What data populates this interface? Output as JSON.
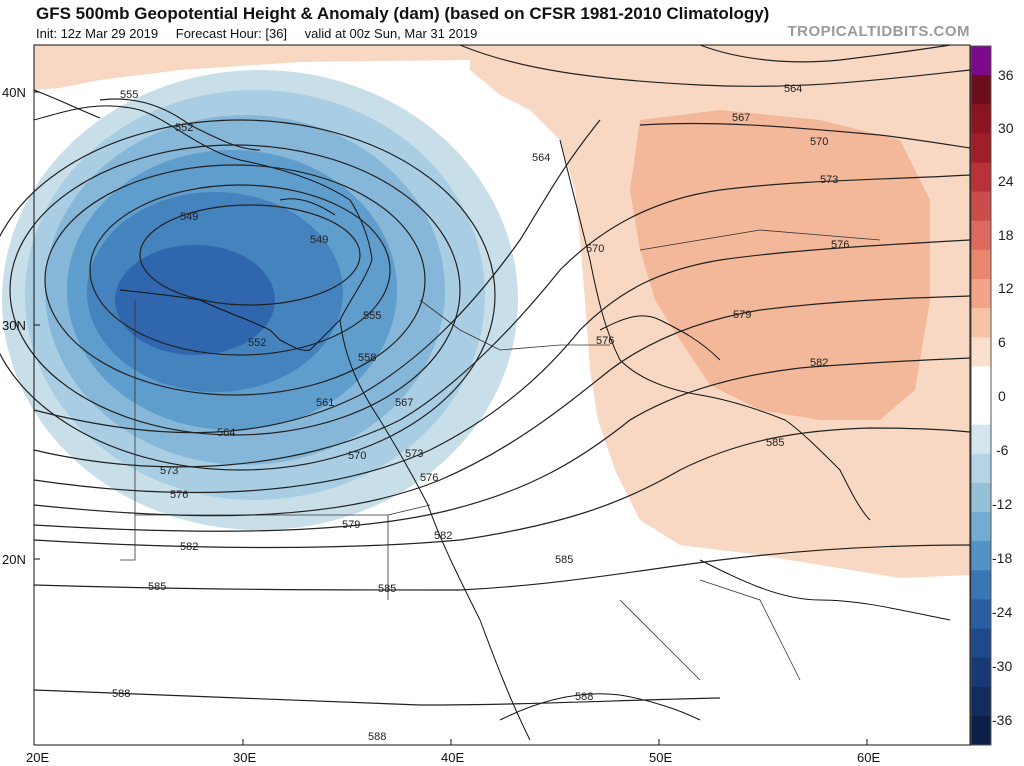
{
  "header": {
    "title": "GFS 500mb Geopotential Height & Anomaly (dam) (based on CFSR 1981-2010 Climatology)",
    "init": "Init: 12z Mar 29 2019",
    "forecast_hour": "Forecast Hour: [36]",
    "valid": "valid at 00z Sun, Mar 31 2019",
    "brand": "TROPICALTIDBITS.COM"
  },
  "axes": {
    "lat_labels": [
      "40N",
      "30N",
      "20N"
    ],
    "lon_labels": [
      "20E",
      "30E",
      "40E",
      "50E",
      "60E"
    ]
  },
  "contour_labels": [
    "555",
    "552",
    "549",
    "549",
    "552",
    "555",
    "558",
    "561",
    "564",
    "567",
    "570",
    "573",
    "576",
    "579",
    "582",
    "585",
    "585",
    "588",
    "588",
    "588",
    "564",
    "567",
    "570",
    "573",
    "576",
    "579",
    "582",
    "585",
    "564",
    "570",
    "576",
    "573",
    "576",
    "582",
    "585"
  ],
  "colorbar": {
    "labels": [
      "36",
      "30",
      "24",
      "18",
      "12",
      "6",
      "0",
      "-6",
      "-12",
      "-18",
      "-24",
      "-30",
      "-36"
    ],
    "colors": [
      "#7a0a8a",
      "#6b0f1a",
      "#8a1420",
      "#a01e28",
      "#b83238",
      "#cc4c4a",
      "#dc6a5e",
      "#e8866e",
      "#f1a488",
      "#f6c3a5",
      "#fadfca",
      "#ffffff",
      "#ffffff",
      "#d3e6ef",
      "#b5d4e3",
      "#94c1d8",
      "#72acd0",
      "#5292c4",
      "#3a76b4",
      "#295ea2",
      "#1e4a8c",
      "#183a74",
      "#122c5e",
      "#0c1f48"
    ]
  },
  "map_colors": {
    "ocean_low": "#2f66ae",
    "low_mid": "#4d8ec8",
    "low_light": "#9ec5df",
    "warm_light": "#f8d8c2",
    "warm_mid": "#f3b89a"
  }
}
